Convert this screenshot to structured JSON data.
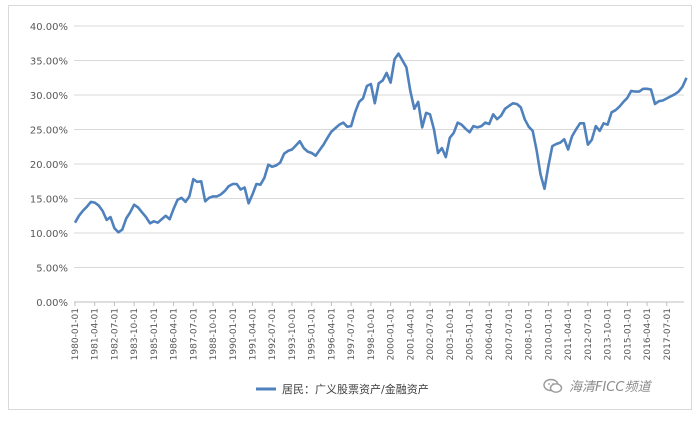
{
  "chart_data": {
    "type": "line",
    "title": "",
    "xlabel": "",
    "ylabel": "",
    "ylim": [
      0,
      40
    ],
    "y_format": "percent_2dp",
    "y_ticks": [
      "0.00%",
      "5.00%",
      "10.00%",
      "15.00%",
      "20.00%",
      "25.00%",
      "30.00%",
      "35.00%",
      "40.00%"
    ],
    "x_range": [
      "1980-01-01",
      "2017-07-01"
    ],
    "x_ticks": [
      "1980-01-01",
      "1981-04-01",
      "1982-07-01",
      "1983-10-01",
      "1985-01-01",
      "1986-04-01",
      "1987-07-01",
      "1988-10-01",
      "1990-01-01",
      "1991-04-01",
      "1992-07-01",
      "1993-10-01",
      "1995-01-01",
      "1996-04-01",
      "1997-07-01",
      "1998-10-01",
      "2000-01-01",
      "2001-04-01",
      "2002-07-01",
      "2003-10-01",
      "2005-01-01",
      "2006-04-01",
      "2007-07-01",
      "2008-10-01",
      "2010-01-01",
      "2011-04-01",
      "2012-07-01",
      "2013-10-01",
      "2015-01-01",
      "2016-04-01",
      "2017-07-01"
    ],
    "grid": true,
    "legend_position": "bottom",
    "series": [
      {
        "name": "居民：广义股票资产/金融资产",
        "color": "#4f81bd",
        "points": [
          [
            "1980-01-01",
            11.5
          ],
          [
            "1980-04-01",
            12.5
          ],
          [
            "1980-07-01",
            13.2
          ],
          [
            "1980-10-01",
            13.8
          ],
          [
            "1981-01-01",
            14.5
          ],
          [
            "1981-04-01",
            14.4
          ],
          [
            "1981-07-01",
            14.0
          ],
          [
            "1981-10-01",
            13.2
          ],
          [
            "1982-01-01",
            11.9
          ],
          [
            "1982-04-01",
            12.3
          ],
          [
            "1982-07-01",
            10.7
          ],
          [
            "1982-10-01",
            10.1
          ],
          [
            "1983-01-01",
            10.5
          ],
          [
            "1983-04-01",
            12.1
          ],
          [
            "1983-07-01",
            13.0
          ],
          [
            "1983-10-01",
            14.1
          ],
          [
            "1984-01-01",
            13.7
          ],
          [
            "1984-04-01",
            13.0
          ],
          [
            "1984-07-01",
            12.3
          ],
          [
            "1984-10-01",
            11.4
          ],
          [
            "1985-01-01",
            11.7
          ],
          [
            "1985-04-01",
            11.5
          ],
          [
            "1985-07-01",
            12.0
          ],
          [
            "1985-10-01",
            12.5
          ],
          [
            "1986-01-01",
            12.0
          ],
          [
            "1986-04-01",
            13.5
          ],
          [
            "1986-07-01",
            14.8
          ],
          [
            "1986-10-01",
            15.1
          ],
          [
            "1987-01-01",
            14.5
          ],
          [
            "1987-04-01",
            15.3
          ],
          [
            "1987-07-01",
            17.8
          ],
          [
            "1987-10-01",
            17.4
          ],
          [
            "1988-01-01",
            17.5
          ],
          [
            "1988-04-01",
            14.6
          ],
          [
            "1988-07-01",
            15.1
          ],
          [
            "1988-10-01",
            15.3
          ],
          [
            "1989-01-01",
            15.3
          ],
          [
            "1989-04-01",
            15.6
          ],
          [
            "1989-07-01",
            16.1
          ],
          [
            "1989-10-01",
            16.8
          ],
          [
            "1990-01-01",
            17.1
          ],
          [
            "1990-04-01",
            17.1
          ],
          [
            "1990-07-01",
            16.3
          ],
          [
            "1990-10-01",
            16.6
          ],
          [
            "1991-01-01",
            14.3
          ],
          [
            "1991-04-01",
            15.6
          ],
          [
            "1991-07-01",
            17.1
          ],
          [
            "1991-10-01",
            17.0
          ],
          [
            "1992-01-01",
            18.0
          ],
          [
            "1992-04-01",
            19.9
          ],
          [
            "1992-07-01",
            19.6
          ],
          [
            "1992-10-01",
            19.8
          ],
          [
            "1993-01-01",
            20.2
          ],
          [
            "1993-04-01",
            21.5
          ],
          [
            "1993-07-01",
            21.9
          ],
          [
            "1993-10-01",
            22.1
          ],
          [
            "1994-01-01",
            22.7
          ],
          [
            "1994-04-01",
            23.3
          ],
          [
            "1994-07-01",
            22.3
          ],
          [
            "1994-10-01",
            21.8
          ],
          [
            "1995-01-01",
            21.6
          ],
          [
            "1995-04-01",
            21.2
          ],
          [
            "1995-07-01",
            22.0
          ],
          [
            "1995-10-01",
            22.8
          ],
          [
            "1996-01-01",
            23.8
          ],
          [
            "1996-04-01",
            24.7
          ],
          [
            "1996-07-01",
            25.2
          ],
          [
            "1996-10-01",
            25.7
          ],
          [
            "1997-01-01",
            26.0
          ],
          [
            "1997-04-01",
            25.4
          ],
          [
            "1997-07-01",
            25.5
          ],
          [
            "1997-10-01",
            27.5
          ],
          [
            "1998-01-01",
            29.0
          ],
          [
            "1998-04-01",
            29.5
          ],
          [
            "1998-07-01",
            31.3
          ],
          [
            "1998-10-01",
            31.6
          ],
          [
            "1999-01-01",
            28.8
          ],
          [
            "1999-04-01",
            31.7
          ],
          [
            "1999-07-01",
            32.1
          ],
          [
            "1999-10-01",
            33.2
          ],
          [
            "2000-01-01",
            31.8
          ],
          [
            "2000-04-01",
            35.2
          ],
          [
            "2000-07-01",
            36.0
          ],
          [
            "2000-10-01",
            35.0
          ],
          [
            "2001-01-01",
            34.0
          ],
          [
            "2001-04-01",
            30.6
          ],
          [
            "2001-07-01",
            28.0
          ],
          [
            "2001-10-01",
            29.0
          ],
          [
            "2002-01-01",
            25.3
          ],
          [
            "2002-04-01",
            27.4
          ],
          [
            "2002-07-01",
            27.2
          ],
          [
            "2002-10-01",
            25.0
          ],
          [
            "2003-01-01",
            21.6
          ],
          [
            "2003-04-01",
            22.3
          ],
          [
            "2003-07-01",
            21.0
          ],
          [
            "2003-10-01",
            23.8
          ],
          [
            "2004-01-01",
            24.5
          ],
          [
            "2004-04-01",
            26.0
          ],
          [
            "2004-07-01",
            25.7
          ],
          [
            "2004-10-01",
            25.1
          ],
          [
            "2005-01-01",
            24.6
          ],
          [
            "2005-04-01",
            25.5
          ],
          [
            "2005-07-01",
            25.3
          ],
          [
            "2005-10-01",
            25.5
          ],
          [
            "2006-01-01",
            26.0
          ],
          [
            "2006-04-01",
            25.8
          ],
          [
            "2006-07-01",
            27.2
          ],
          [
            "2006-10-01",
            26.5
          ],
          [
            "2007-01-01",
            27.0
          ],
          [
            "2007-04-01",
            28.0
          ],
          [
            "2007-07-01",
            28.4
          ],
          [
            "2007-10-01",
            28.8
          ],
          [
            "2008-01-01",
            28.7
          ],
          [
            "2008-04-01",
            28.2
          ],
          [
            "2008-07-01",
            26.5
          ],
          [
            "2008-10-01",
            25.4
          ],
          [
            "2009-01-01",
            24.8
          ],
          [
            "2009-04-01",
            22.0
          ],
          [
            "2009-07-01",
            18.5
          ],
          [
            "2009-10-01",
            16.4
          ],
          [
            "2010-01-01",
            19.8
          ],
          [
            "2010-04-01",
            22.6
          ],
          [
            "2010-07-01",
            22.9
          ],
          [
            "2010-10-01",
            23.1
          ],
          [
            "2011-01-01",
            23.6
          ],
          [
            "2011-04-01",
            22.1
          ],
          [
            "2011-07-01",
            24.0
          ],
          [
            "2011-10-01",
            25.0
          ],
          [
            "2012-01-01",
            25.9
          ],
          [
            "2012-04-01",
            25.9
          ],
          [
            "2012-07-01",
            22.8
          ],
          [
            "2012-10-01",
            23.5
          ],
          [
            "2013-01-01",
            25.5
          ],
          [
            "2013-04-01",
            24.8
          ],
          [
            "2013-07-01",
            25.9
          ],
          [
            "2013-10-01",
            25.7
          ],
          [
            "2014-01-01",
            27.5
          ],
          [
            "2014-04-01",
            27.8
          ],
          [
            "2014-07-01",
            28.3
          ],
          [
            "2014-10-01",
            29.0
          ],
          [
            "2015-01-01",
            29.6
          ],
          [
            "2015-04-01",
            30.6
          ],
          [
            "2015-07-01",
            30.5
          ],
          [
            "2015-10-01",
            30.5
          ],
          [
            "2016-01-01",
            30.9
          ],
          [
            "2016-04-01",
            30.9
          ],
          [
            "2016-07-01",
            30.8
          ],
          [
            "2016-10-01",
            28.7
          ],
          [
            "2017-01-01",
            29.1
          ],
          [
            "2017-04-01",
            29.2
          ],
          [
            "2017-07-01",
            29.5
          ],
          [
            "2017-10-01",
            29.8
          ],
          [
            "2018-01-01",
            30.1
          ],
          [
            "2018-04-01",
            30.5
          ],
          [
            "2018-07-01",
            31.2
          ],
          [
            "2018-10-01",
            32.5
          ]
        ]
      }
    ]
  },
  "watermark": {
    "text": "海清FICC频道",
    "icon": "wechat-logo-icon",
    "color": "#8c8c8c"
  }
}
